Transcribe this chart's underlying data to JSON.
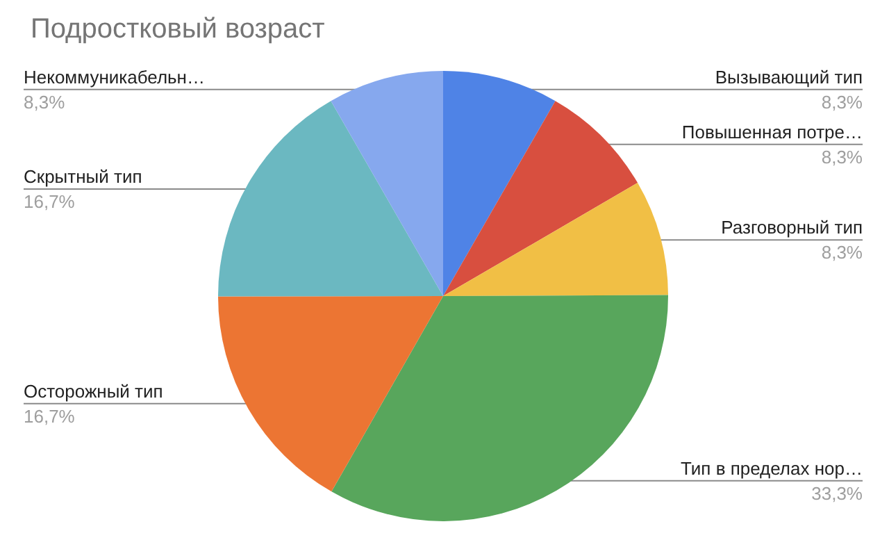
{
  "chart_data": {
    "type": "pie",
    "title": "Подростковый возраст",
    "categories": [
      "Вызывающий тип",
      "Повышенная потре…",
      "Разговорный тип",
      "Тип в пределах нор…",
      "Осторожный тип",
      "Скрытный тип",
      "Некоммуникабельн…"
    ],
    "values": [
      8.3,
      8.3,
      8.3,
      33.3,
      16.7,
      16.7,
      8.3
    ],
    "value_labels": [
      "8,3%",
      "8,3%",
      "8,3%",
      "33,3%",
      "16,7%",
      "16,7%",
      "8,3%"
    ],
    "colors": [
      "#4f83e6",
      "#d84f3f",
      "#f1bf45",
      "#58a65c",
      "#ec7533",
      "#6bb8c1",
      "#86a8ee"
    ]
  }
}
